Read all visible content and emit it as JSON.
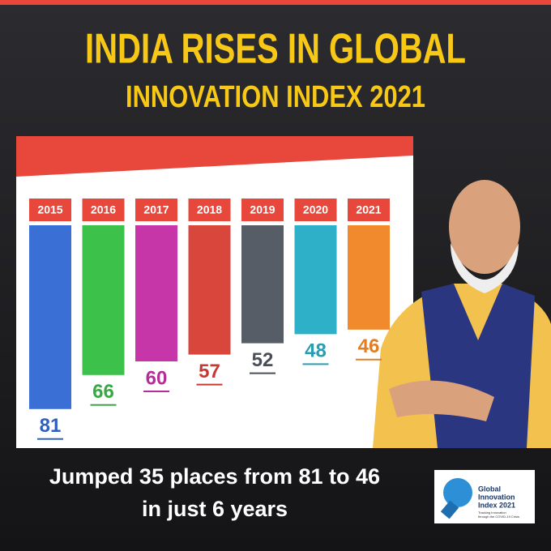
{
  "chart_data": {
    "type": "bar",
    "title": [
      "INDIA RISES IN GLOBAL",
      "INNOVATION INDEX 2021"
    ],
    "categories": [
      "2015",
      "2016",
      "2017",
      "2018",
      "2019",
      "2020",
      "2021"
    ],
    "values": [
      81,
      66,
      60,
      57,
      52,
      48,
      46
    ],
    "colors": [
      "#3a6fd6",
      "#3cc24a",
      "#c636a8",
      "#d9463c",
      "#565d66",
      "#2eb0c9",
      "#f08a2c"
    ],
    "label_colors": [
      "#2f5fbf",
      "#36a844",
      "#b52d98",
      "#c63a33",
      "#4a4f57",
      "#2a9db3",
      "#e07e26"
    ],
    "category_color": "#e8473b",
    "caption": [
      "Jumped 35 places from 81 to 46",
      "in just 6 years"
    ],
    "logo": {
      "title": [
        "Global",
        "Innovation",
        "Index 2021"
      ],
      "subtitle": [
        "Tracking Innovation",
        "through the COVID-19 Crisis"
      ]
    }
  }
}
